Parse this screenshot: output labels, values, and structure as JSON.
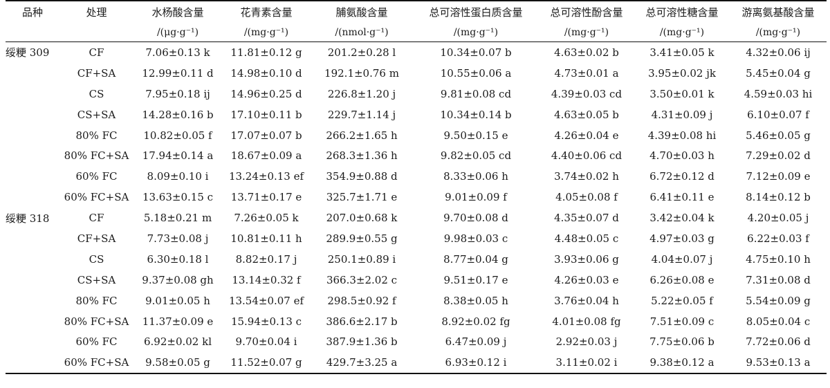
{
  "table": {
    "headers": [
      "品种",
      "处理",
      "水杨酸含量",
      "花青素含量",
      "脯氨酸含量",
      "总可溶性蛋白质含量",
      "总可溶性酚含量",
      "总可溶性糖含量",
      "游离氨基酸含量"
    ],
    "units": [
      "",
      "",
      "/(μg·g⁻¹)",
      "/(mg·g⁻¹)",
      "/(nmol·g⁻¹)",
      "/(mg·g⁻¹)",
      "/(mg·g⁻¹)",
      "/(mg·g⁻¹)",
      "/(mg·g⁻¹)"
    ],
    "rows": [
      [
        "绥粳 309",
        "CF",
        "7.06±0.13 k",
        "11.81±0.12 g",
        "201.2±0.28 l",
        "10.34±0.07 b",
        "4.63±0.02 b",
        "3.41±0.05 k",
        "4.32±0.06 ij"
      ],
      [
        "",
        "CF+SA",
        "12.99±0.11 d",
        "14.98±0.10 d",
        "192.1±0.76 m",
        "10.55±0.06 a",
        "4.73±0.01 a",
        "3.95±0.02 jk",
        "5.45±0.04 g"
      ],
      [
        "",
        "CS",
        "7.95±0.18 ij",
        "14.96±0.25 d",
        "226.8±1.20 j",
        "9.81±0.08 cd",
        "4.39±0.03 cd",
        "3.50±0.01 k",
        "4.59±0.03 hi"
      ],
      [
        "",
        "CS+SA",
        "14.28±0.16 b",
        "17.10±0.11 b",
        "229.7±1.14 j",
        "10.34±0.14 b",
        "4.63±0.05 b",
        "4.31±0.09 j",
        "6.10±0.07 f"
      ],
      [
        "",
        "80% FC",
        "10.82±0.05 f",
        "17.07±0.07 b",
        "266.2±1.65 h",
        "9.50±0.15 e",
        "4.26±0.04 e",
        "4.39±0.08 hi",
        "5.46±0.05 g"
      ],
      [
        "",
        "80% FC+SA",
        "17.94±0.14 a",
        "18.67±0.09 a",
        "268.3±1.36 h",
        "9.82±0.05 cd",
        "4.40±0.06 cd",
        "4.70±0.03 h",
        "7.29±0.02 d"
      ],
      [
        "",
        "60% FC",
        "8.09±0.10 i",
        "13.24±0.13 ef",
        "354.9±0.88 d",
        "8.33±0.06 h",
        "3.74±0.02 h",
        "6.72±0.12 d",
        "7.12±0.09 e"
      ],
      [
        "",
        "60% FC+SA",
        "13.63±0.15 c",
        "13.71±0.17 e",
        "325.7±1.71 e",
        "9.01±0.09 f",
        "4.05±0.08 f",
        "6.41±0.11 e",
        "8.14±0.12 b"
      ],
      [
        "绥粳 318",
        "CF",
        "5.18±0.21 m",
        "7.26±0.05 k",
        "207.0±0.68 k",
        "9.70±0.08 d",
        "4.35±0.07 d",
        "3.42±0.04 k",
        "4.20±0.05 j"
      ],
      [
        "",
        "CF+SA",
        "7.73±0.08 j",
        "10.81±0.11 h",
        "289.9±0.55 g",
        "9.98±0.03 c",
        "4.48±0.05 c",
        "4.97±0.03 g",
        "6.22±0.03 f"
      ],
      [
        "",
        "CS",
        "6.30±0.18 l",
        "8.82±0.17 j",
        "250.1±0.89 i",
        "8.77±0.04 g",
        "3.93±0.06 g",
        "4.04±0.07 j",
        "4.75±0.10 h"
      ],
      [
        "",
        "CS+SA",
        "9.37±0.08 gh",
        "13.14±0.32 f",
        "366.3±2.02 c",
        "9.51±0.17 e",
        "4.26±0.03 e",
        "6.26±0.08 e",
        "7.31±0.08 d"
      ],
      [
        "",
        "80% FC",
        "9.01±0.05 h",
        "13.54±0.07 ef",
        "298.5±0.92 f",
        "8.38±0.05 h",
        "3.76±0.04 h",
        "5.22±0.05 f",
        "5.54±0.09 g"
      ],
      [
        "",
        "80% FC+SA",
        "11.37±0.09 e",
        "15.94±0.13 c",
        "386.6±2.17 b",
        "8.92±0.02 fg",
        "4.01±0.08 fg",
        "7.51±0.09 c",
        "8.05±0.04 c"
      ],
      [
        "",
        "60% FC",
        "6.92±0.02 kl",
        "9.70±0.04 i",
        "387.9±1.36 b",
        "6.47±0.09 j",
        "2.92±0.03 j",
        "7.75±0.06 b",
        "7.72±0.06 d"
      ],
      [
        "",
        "60% FC+SA",
        "9.58±0.05 g",
        "11.52±0.07 g",
        "429.7±3.25 a",
        "6.93±0.12 i",
        "3.11±0.02 i",
        "9.38±0.12 a",
        "9.53±0.13 a"
      ]
    ]
  }
}
